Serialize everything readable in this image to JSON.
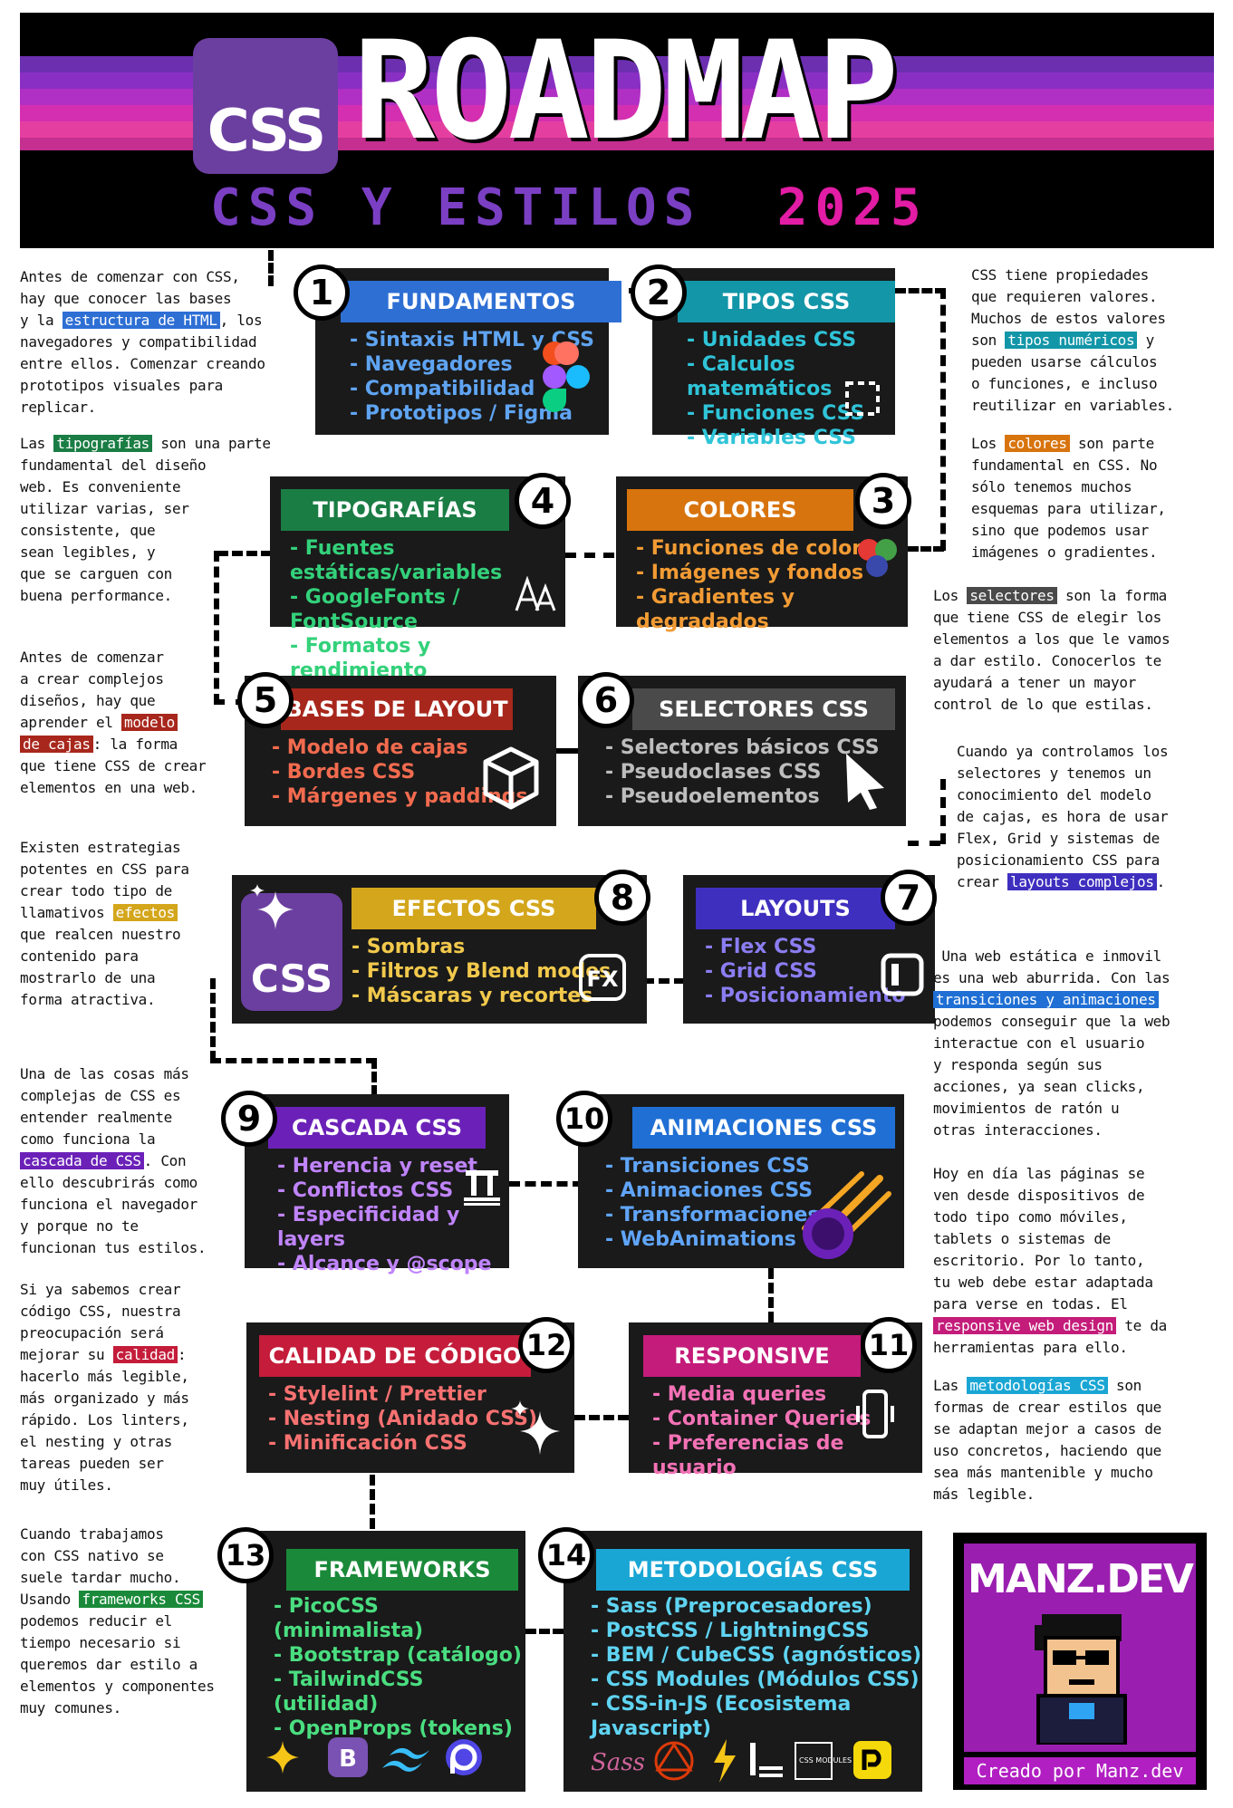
{
  "header": {
    "logo": "CSS",
    "title": "ROADMAP",
    "subtitle": "CSS Y ESTILOS",
    "year": "2025"
  },
  "cards": [
    {
      "num": "1",
      "title": "FUNDAMENTOS",
      "items": [
        "- Sintaxis HTML y CSS",
        "- Navegadores",
        "- Compatibilidad",
        "- Prototipos / Figma"
      ],
      "color": "#2e6fd4",
      "text": "#5fa4f2"
    },
    {
      "num": "2",
      "title": "TIPOS CSS",
      "items": [
        "- Unidades CSS",
        "- Calculos matemáticos",
        "- Funciones CSS",
        "- Variables CSS"
      ],
      "color": "#1296a8",
      "text": "#2fc4d8"
    },
    {
      "num": "3",
      "title": "COLORES",
      "items": [
        "- Funciones de colores",
        "- Imágenes y fondos",
        "- Gradientes y degradados"
      ],
      "color": "#d8740e",
      "text": "#f29b34"
    },
    {
      "num": "4",
      "title": "TIPOGRAFÍAS",
      "items": [
        "- Fuentes estáticas/variables",
        "- GoogleFonts / FontSource",
        "- Formatos y rendimiento"
      ],
      "color": "#1a7d44",
      "text": "#33d17a"
    },
    {
      "num": "5",
      "title": "BASES DE LAYOUT",
      "items": [
        "- Modelo de cajas",
        "- Bordes CSS",
        "- Márgenes y paddings"
      ],
      "color": "#a8271c",
      "text": "#f26b4f"
    },
    {
      "num": "6",
      "title": "SELECTORES CSS",
      "items": [
        "- Selectores básicos CSS",
        "- Pseudoclases CSS",
        "- Pseudoelementos"
      ],
      "color": "#4a4a4a",
      "text": "#bdbdbd"
    },
    {
      "num": "7",
      "title": "LAYOUTS",
      "items": [
        "- Flex CSS",
        "- Grid CSS",
        "- Posicionamiento"
      ],
      "color": "#3f2fbf",
      "text": "#8b7df2"
    },
    {
      "num": "8",
      "title": "EFECTOS CSS",
      "items": [
        "- Sombras",
        "- Filtros y Blend modes",
        "- Máscaras y recortes"
      ],
      "color": "#d4a61c",
      "text": "#f2c94c"
    },
    {
      "num": "9",
      "title": "CASCADA CSS",
      "items": [
        "- Herencia y reset",
        "- Conflictos CSS",
        "- Especificidad y layers",
        "- Alcance y @scope"
      ],
      "color": "#6b21b8",
      "text": "#c084fc"
    },
    {
      "num": "10",
      "title": "ANIMACIONES CSS",
      "items": [
        "- Transiciones CSS",
        "- Animaciones CSS",
        "- Transformaciones",
        "- WebAnimations (JS)"
      ],
      "color": "#1f6fd4",
      "text": "#60a5fa"
    },
    {
      "num": "11",
      "title": "RESPONSIVE",
      "items": [
        "- Media queries",
        "- Container Queries",
        "- Preferencias de usuario"
      ],
      "color": "#c41c7a",
      "text": "#f472b6"
    },
    {
      "num": "12",
      "title": "CALIDAD DE CÓDIGO",
      "items": [
        "- Stylelint / Prettier",
        "- Nesting (Anidado CSS)",
        "- Minificación CSS"
      ],
      "color": "#c41c3a",
      "text": "#f87171"
    },
    {
      "num": "13",
      "title": "FRAMEWORKS",
      "items": [
        "- PicoCSS (minimalista)",
        "- Bootstrap (catálogo)",
        "- TailwindCSS (utilidad)",
        "- OpenProps (tokens)"
      ],
      "color": "#1a8a3a",
      "text": "#4ade80"
    },
    {
      "num": "14",
      "title": "METODOLOGÍAS CSS",
      "items": [
        "- Sass (Preprocesadores)",
        "- PostCSS / LightningCSS",
        "- BEM / CubeCSS (agnósticos)",
        "- CSS Modules (Módulos CSS)",
        "- CSS-in-JS (Ecosistema Javascript)"
      ],
      "color": "#1aa6d4",
      "text": "#5fd4f2"
    }
  ],
  "notes": {
    "n1": {
      "a": "Antes de comenzar con CSS,\nhay que conocer las bases\ny la ",
      "hl": "estructura de HTML",
      "b": ", los\nnavegadores y compatibilidad\nentre ellos. Comenzar creando\nprototipos visuales para\nreplicar."
    },
    "n2": {
      "a": "Las ",
      "hl": "tipografías",
      "b": " son una parte\nfundamental del diseño\nweb. Es conveniente\nutilizar varias, ser\nconsistente, que\nsean legibles, y\nque se carguen con\nbuena performance."
    },
    "n3": {
      "a": "Antes de comenzar\na crear complejos\ndiseños, hay que\naprender el ",
      "hl": "modelo",
      "hl2": "de cajas",
      "b": ": la forma\nque tiene CSS de crear\nelementos en una web."
    },
    "n4": {
      "a": "Existen estrategias\npotentes en CSS para\ncrear todo tipo de\nllamativos ",
      "hl": "efectos",
      "b": "\nque realcen nuestro\ncontenido para\nmostrarlo de una\nforma atractiva."
    },
    "n5": {
      "a": "Una de las cosas más\ncomplejas de CSS es\nentender realmente\ncomo funciona la\n",
      "hl": "cascada de CSS",
      "b": ". Con\nello descubrirás como\nfunciona el navegador\ny porque no te\nfuncionan tus estilos."
    },
    "n6": {
      "a": "Si ya sabemos crear\ncódigo CSS, nuestra\npreocupación será\nmejorar su ",
      "hl": "calidad",
      "b": ":\nhacerlo más legible,\nmás organizado y más\nrápido. Los linters,\nel nesting y otras\ntareas pueden ser\nmuy útiles."
    },
    "n7": {
      "a": "Cuando trabajamos\ncon CSS nativo se\nsuele tardar mucho.\nUsando ",
      "hl": "frameworks CSS",
      "b": "\npodemos reducir el\ntiempo necesario si\nqueremos dar estilo a\nelementos y componentes\nmuy comunes."
    },
    "r1": {
      "a": "CSS tiene propiedades\nque requieren valores.\nMuchos de estos valores\nson ",
      "hl": "tipos numéricos",
      "b": " y\npueden usarse cálculos\no funciones, e incluso\nreutilizar en variables."
    },
    "r2": {
      "a": "Los ",
      "hl": "colores",
      "b": " son parte\nfundamental en CSS. No\nsólo tenemos muchos\nesquemas para utilizar,\nsino que podemos usar\nimágenes o gradientes."
    },
    "r3": {
      "a": "Los ",
      "hl": "selectores",
      "b": " son la forma\nque tiene CSS de elegir los\nelementos a los que le vamos\na dar estilo. Conocerlos te\nayudará a tener un mayor\ncontrol de lo que estilas."
    },
    "r4": {
      "a": "Cuando ya controlamos los\nselectores y tenemos un\nconocimiento del modelo\nde cajas, es hora de usar\nFlex, Grid y sistemas de\nposicionamiento CSS para\ncrear ",
      "hl": "layouts complejos",
      "b": "."
    },
    "r5": {
      "a": " Una web estática e inmovil\nes una web aburrida. Con las\n",
      "hl": "transiciones y animaciones",
      "b": "\npodemos conseguir que la web\ninteractue con el usuario\ny responda según sus\nacciones, ya sean clicks,\nmovimientos de ratón u\notras interacciones."
    },
    "r6": {
      "a": "Hoy en día las páginas se\nven desde dispositivos de\ntodo tipo como móviles,\ntablets o sistemas de\nescritorio. Por lo tanto,\ntu web debe estar adaptada\npara verse en todas. El\n",
      "hl": "responsive web design",
      "b": " te da\nherramientas para ello."
    },
    "r7": {
      "a": "Las ",
      "hl": "metodologías CSS",
      "b": " son\nformas de crear estilos que\nse adaptan mejor a casos de\nuso concretos, haciendo que\nsea más mantenible y mucho\nmás legible."
    }
  },
  "highlight_colors": {
    "n1": "#2e6fd4",
    "n2": "#1a7d44",
    "n3": "#a8271c",
    "n4": "#d4a61c",
    "n5": "#6b21b8",
    "n6": "#c41c3a",
    "n7": "#1a8a3a",
    "r1": "#1296a8",
    "r2": "#d8740e",
    "r3": "#4a4a4a",
    "r4": "#3f2fbf",
    "r5": "#1f6fd4",
    "r6": "#c41c7a",
    "r7": "#1aa6d4"
  },
  "promo": {
    "title": "MANZ.DEV",
    "footer": "Creado por Manz.dev"
  },
  "effects_logo": "CSS",
  "fx_label": "FX",
  "bootstrap_label": "B",
  "css_modules_label": "CSS MODULES",
  "sass_label": "Sass"
}
